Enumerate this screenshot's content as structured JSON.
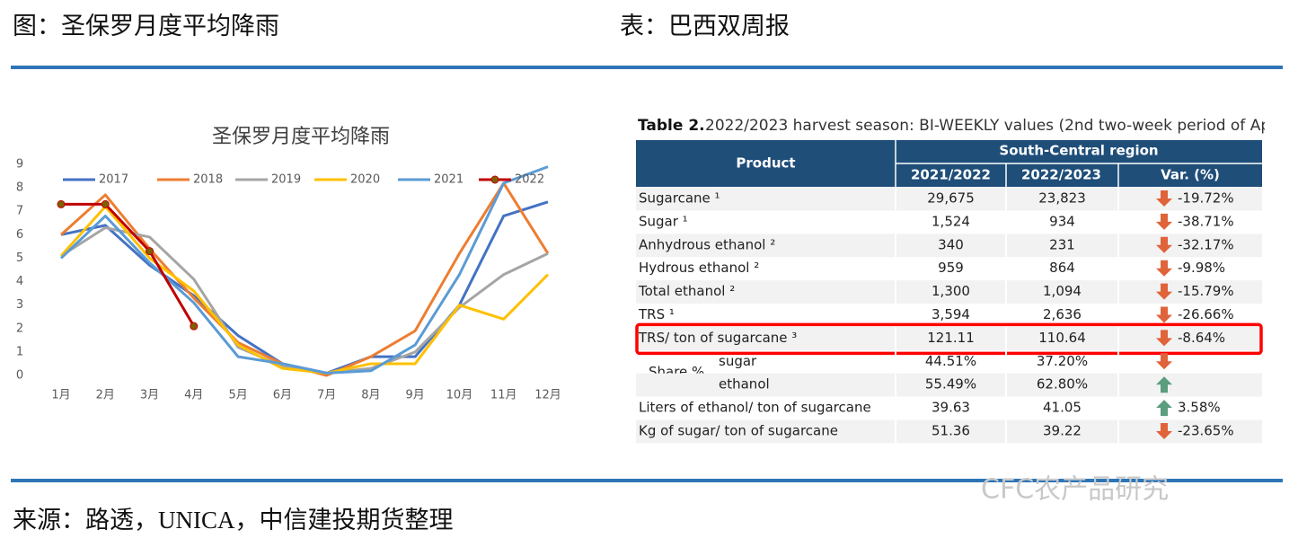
{
  "header": {
    "left": "图：圣保罗月度平均降雨",
    "right": "表：巴西双周报"
  },
  "chart_data": {
    "type": "line",
    "title": "圣保罗月度平均降雨",
    "categories": [
      "1月",
      "2月",
      "3月",
      "4月",
      "5月",
      "6月",
      "7月",
      "8月",
      "9月",
      "10月",
      "11月",
      "12月"
    ],
    "series": [
      {
        "name": "2017",
        "color": "#4472c4",
        "values": [
          6.0,
          6.4,
          4.7,
          3.4,
          1.7,
          0.5,
          0.1,
          0.8,
          0.8,
          3.0,
          6.8,
          7.4
        ]
      },
      {
        "name": "2018",
        "color": "#ed7d31",
        "values": [
          6.0,
          7.7,
          5.4,
          3.3,
          1.4,
          0.5,
          0.0,
          0.8,
          1.9,
          5.2,
          8.2,
          5.2
        ]
      },
      {
        "name": "2019",
        "color": "#a5a5a5",
        "values": [
          5.1,
          6.3,
          5.9,
          4.1,
          1.2,
          0.4,
          0.1,
          0.3,
          1.0,
          2.9,
          4.3,
          5.2
        ]
      },
      {
        "name": "2020",
        "color": "#ffc000",
        "values": [
          5.1,
          7.2,
          5.0,
          3.6,
          1.3,
          0.3,
          0.1,
          0.5,
          0.5,
          3.0,
          2.4,
          4.3
        ]
      },
      {
        "name": "2021",
        "color": "#5b9bd5",
        "values": [
          5.0,
          6.8,
          4.8,
          3.1,
          0.8,
          0.5,
          0.1,
          0.2,
          1.3,
          4.3,
          8.2,
          8.9
        ]
      },
      {
        "name": "2022",
        "color": "#c00000",
        "markers": true,
        "values": [
          7.3,
          7.3,
          5.3,
          2.1,
          null,
          null,
          null,
          null,
          null,
          null,
          null,
          null
        ]
      }
    ],
    "ylim": [
      0,
      9
    ],
    "yticks": [
      0,
      1,
      2,
      3,
      4,
      5,
      6,
      7,
      8,
      9
    ],
    "grid": false,
    "legend": "top"
  },
  "table": {
    "title_bold": "Table 2.",
    "title": "2022/2023 harvest season: BI-WEEKLY values (2nd two-week period of Ap",
    "head": {
      "product": "Product",
      "region": "South-Central region",
      "cols": [
        "2021/2022",
        "2022/2023",
        "Var. (%)"
      ]
    },
    "rows": [
      {
        "product": "Sugarcane ¹",
        "a": "29,675",
        "b": "23,823",
        "var": "-19.72%",
        "arrow": "down"
      },
      {
        "product": "Sugar ¹",
        "a": "1,524",
        "b": "934",
        "var": "-38.71%",
        "arrow": "down"
      },
      {
        "product": "Anhydrous ethanol ²",
        "a": "340",
        "b": "231",
        "var": "-32.17%",
        "arrow": "down"
      },
      {
        "product": "Hydrous ethanol ²",
        "a": "959",
        "b": "864",
        "var": "-9.98%",
        "arrow": "down"
      },
      {
        "product": "Total ethanol ²",
        "a": "1,300",
        "b": "1,094",
        "var": "-15.79%",
        "arrow": "down"
      },
      {
        "product": "TRS ¹",
        "a": "3,594",
        "b": "2,636",
        "var": "-26.66%",
        "arrow": "down"
      },
      {
        "product": "TRS/ ton of sugarcane ³",
        "a": "121.11",
        "b": "110.64",
        "var": "-8.64%",
        "arrow": "down",
        "highlight": true
      },
      {
        "group": "Share %",
        "product": "sugar",
        "a": "44.51%",
        "b": "37.20%",
        "arrow": "down"
      },
      {
        "product": "ethanol",
        "a": "55.49%",
        "b": "62.80%",
        "arrow": "up"
      },
      {
        "product": "Liters of ethanol/ ton of sugarcane",
        "a": "39.63",
        "b": "41.05",
        "var": "3.58%",
        "arrow": "up"
      },
      {
        "product": "Kg of sugar/ ton of sugarcane",
        "a": "51.36",
        "b": "39.22",
        "var": "-23.65%",
        "arrow": "down"
      }
    ]
  },
  "footer": {
    "source": "来源：路透，UNICA，中信建投期货整理",
    "watermark": "CFC农产品研究"
  }
}
